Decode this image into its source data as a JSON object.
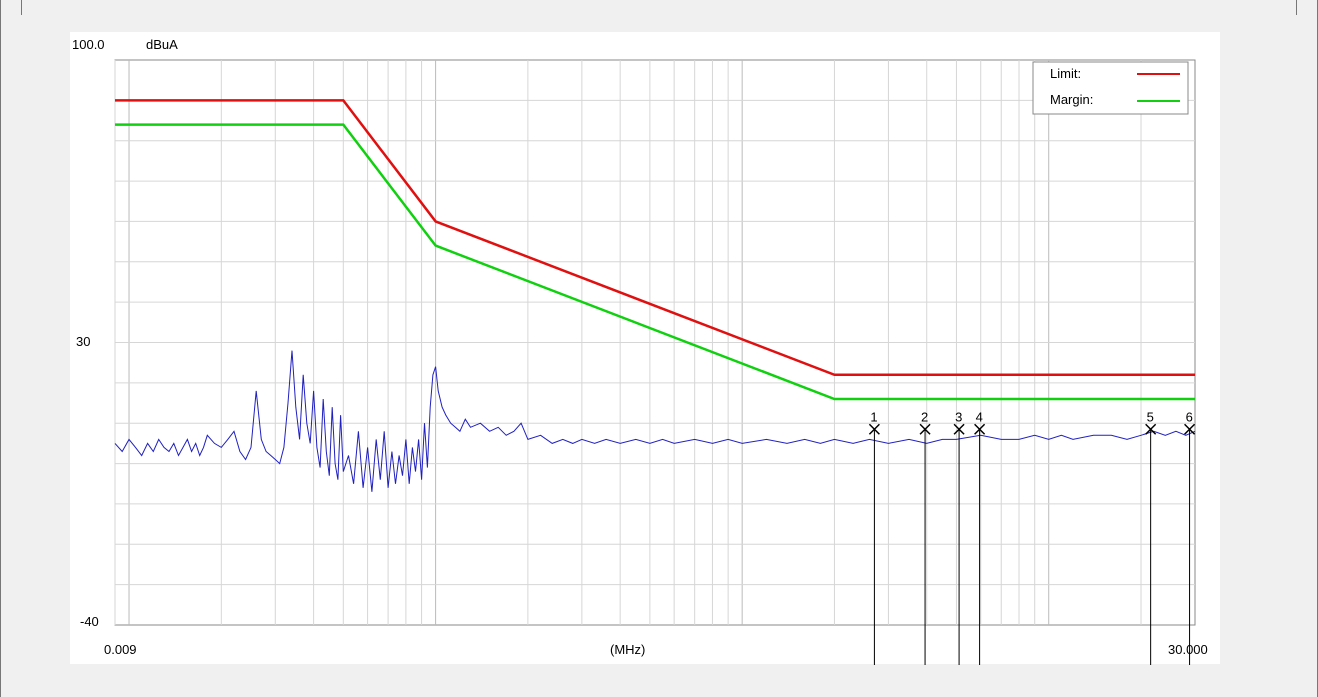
{
  "chart_data": {
    "type": "line",
    "ylabel": "dBuA",
    "xlabel": "(MHz)",
    "x_scale": "log",
    "xlim": [
      0.009,
      30.0
    ],
    "ylim": [
      -40,
      100
    ],
    "y_tick_labels": [
      "100.0",
      "30",
      "-40"
    ],
    "x_tick_labels": [
      "0.009",
      "30.000"
    ],
    "grid": true,
    "legend": {
      "position": "top-right",
      "entries": [
        {
          "label": "Limit:",
          "color": "#e01010"
        },
        {
          "label": "Margin:",
          "color": "#10d010"
        }
      ]
    },
    "series": [
      {
        "name": "Limit:",
        "color": "#e01010",
        "x": [
          0.009,
          0.05,
          0.1,
          2.0,
          30.0
        ],
        "y": [
          90,
          90,
          60,
          22,
          22
        ]
      },
      {
        "name": "Margin:",
        "color": "#10d010",
        "x": [
          0.009,
          0.05,
          0.1,
          2.0,
          30.0
        ],
        "y": [
          84,
          84,
          54,
          16,
          16
        ]
      },
      {
        "color": "#2020c0",
        "x": [
          0.009,
          0.0095,
          0.01,
          0.0105,
          0.011,
          0.0115,
          0.012,
          0.0125,
          0.013,
          0.0135,
          0.014,
          0.0145,
          0.015,
          0.0155,
          0.016,
          0.0165,
          0.017,
          0.0175,
          0.018,
          0.019,
          0.02,
          0.021,
          0.022,
          0.023,
          0.024,
          0.025,
          0.026,
          0.027,
          0.028,
          0.029,
          0.03,
          0.031,
          0.032,
          0.033,
          0.034,
          0.035,
          0.036,
          0.037,
          0.038,
          0.039,
          0.04,
          0.041,
          0.042,
          0.043,
          0.044,
          0.045,
          0.046,
          0.047,
          0.048,
          0.049,
          0.05,
          0.052,
          0.054,
          0.056,
          0.058,
          0.06,
          0.062,
          0.064,
          0.066,
          0.068,
          0.07,
          0.072,
          0.074,
          0.076,
          0.078,
          0.08,
          0.082,
          0.084,
          0.086,
          0.088,
          0.09,
          0.092,
          0.094,
          0.096,
          0.098,
          0.1,
          0.102,
          0.105,
          0.108,
          0.112,
          0.116,
          0.12,
          0.125,
          0.13,
          0.14,
          0.15,
          0.16,
          0.17,
          0.18,
          0.19,
          0.2,
          0.22,
          0.24,
          0.26,
          0.28,
          0.3,
          0.33,
          0.36,
          0.4,
          0.45,
          0.5,
          0.55,
          0.6,
          0.7,
          0.8,
          0.9,
          1.0,
          1.2,
          1.4,
          1.6,
          1.8,
          2.0,
          2.3,
          2.6,
          3.0,
          3.5,
          4.0,
          4.5,
          5.0,
          6.0,
          7.0,
          8.0,
          9.0,
          10.0,
          11.0,
          12.0,
          14.0,
          16.0,
          18.0,
          20.0,
          22.0,
          24.0,
          26.0,
          28.0,
          30.0
        ],
        "y": [
          5,
          3,
          6,
          4,
          2,
          5,
          3,
          6,
          4,
          3,
          5,
          2,
          4,
          6,
          3,
          5,
          2,
          4,
          7,
          5,
          4,
          6,
          8,
          3,
          1,
          4,
          18,
          6,
          3,
          2,
          1,
          0,
          4,
          15,
          28,
          14,
          6,
          22,
          10,
          5,
          18,
          4,
          -1,
          16,
          3,
          -3,
          14,
          0,
          -4,
          12,
          -2,
          2,
          -5,
          8,
          -6,
          4,
          -7,
          6,
          -4,
          8,
          -6,
          3,
          -5,
          2,
          -3,
          6,
          -5,
          4,
          -2,
          6,
          -4,
          10,
          -1,
          14,
          22,
          24,
          18,
          14,
          12,
          10,
          9,
          8,
          11,
          9,
          10,
          8,
          9,
          7,
          8,
          10,
          6,
          7,
          5,
          6,
          5,
          6,
          5,
          6,
          5,
          6,
          5,
          6,
          5,
          6,
          5,
          6,
          5,
          6,
          5,
          6,
          5,
          6,
          5,
          6,
          5,
          6,
          5,
          6,
          6,
          7,
          6,
          6,
          7,
          6,
          7,
          6,
          7,
          7,
          6,
          7,
          8,
          7,
          8,
          7,
          8
        ]
      }
    ],
    "markers": [
      {
        "label": "1",
        "x": 2.7,
        "y": 8.5
      },
      {
        "label": "2",
        "x": 3.95,
        "y": 8.5
      },
      {
        "label": "3",
        "x": 5.1,
        "y": 8.5
      },
      {
        "label": "4",
        "x": 5.95,
        "y": 8.5
      },
      {
        "label": "5",
        "x": 21.5,
        "y": 8.5
      },
      {
        "label": "6",
        "x": 28.8,
        "y": 8.5
      }
    ]
  }
}
